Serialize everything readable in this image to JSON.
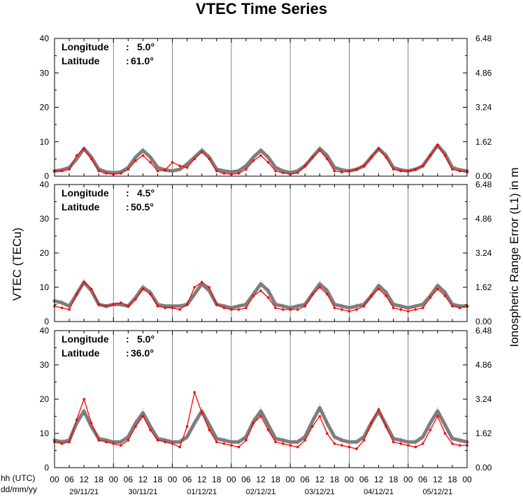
{
  "chart_data": {
    "type": "line",
    "title": "VTEC Time Series",
    "ylabel_left": "VTEC (TECu)",
    "ylabel_right": "Ionospheric Range Error (L1) in m",
    "x_row_label_1": "hh (UTC)",
    "x_row_label_2": "dd/mm/yy",
    "hour_labels": [
      "00",
      "06",
      "12",
      "18",
      "00",
      "06",
      "12",
      "18",
      "00",
      "06",
      "12",
      "18",
      "00",
      "06",
      "12",
      "18",
      "00",
      "06",
      "12",
      "18",
      "00",
      "06",
      "12",
      "18",
      "00",
      "06",
      "12",
      "18",
      "00"
    ],
    "day_labels": [
      "29/11/21",
      "30/11/21",
      "01/12/21",
      "02/12/21",
      "03/12/21",
      "04/12/21",
      "05/12/21"
    ],
    "ylim": [
      0,
      40
    ],
    "left_ticks": [
      "0",
      "10",
      "20",
      "30",
      "40"
    ],
    "right_ticks": [
      "0.00",
      "1.62",
      "3.24",
      "4.86",
      "6.48"
    ],
    "x_hours_range": [
      0,
      168
    ],
    "panels": [
      {
        "longitude_label": "Longitude",
        "longitude": "5.0°",
        "latitude_label": "Latitude",
        "latitude": "61.0°",
        "sep": ":",
        "series": [
          {
            "role": "reference",
            "color": "#707070",
            "hours": [
              0,
              3,
              6,
              9,
              12,
              15,
              18,
              21,
              24,
              27,
              30,
              33,
              36,
              39,
              42,
              45,
              48,
              51,
              54,
              57,
              60,
              63,
              66,
              69,
              72,
              75,
              78,
              81,
              84,
              87,
              90,
              93,
              96,
              99,
              102,
              105,
              108,
              111,
              114,
              117,
              120,
              123,
              126,
              129,
              132,
              135,
              138,
              141,
              144,
              147,
              150,
              153,
              156,
              159,
              162,
              165,
              168
            ],
            "values": [
              1.5,
              1.8,
              2.5,
              5,
              8,
              5.5,
              2,
              1.2,
              1,
              1.2,
              2.5,
              5.5,
              7.5,
              5.5,
              2.5,
              1.8,
              1.5,
              2,
              3.5,
              5.5,
              7.5,
              5.5,
              2,
              1.5,
              1.2,
              1.5,
              3,
              5.5,
              7.5,
              5.5,
              2.5,
              1.5,
              1,
              1.5,
              3,
              5.5,
              8,
              6,
              2.5,
              1.8,
              1.5,
              2,
              3,
              5.5,
              8,
              6,
              2.5,
              1.8,
              1.5,
              2,
              3,
              6,
              9,
              6.5,
              2.5,
              1.8,
              1.5
            ]
          },
          {
            "role": "measured",
            "color": "#ff0000",
            "hours": [
              0,
              3,
              6,
              9,
              12,
              15,
              18,
              21,
              24,
              27,
              30,
              33,
              36,
              39,
              42,
              45,
              48,
              51,
              54,
              57,
              60,
              63,
              66,
              69,
              72,
              75,
              78,
              81,
              84,
              87,
              90,
              93,
              96,
              99,
              102,
              105,
              108,
              111,
              114,
              117,
              120,
              123,
              126,
              129,
              132,
              135,
              138,
              141,
              144,
              147,
              150,
              153,
              156,
              159,
              162,
              165,
              168
            ],
            "values": [
              1.5,
              1.5,
              2,
              6,
              8,
              5,
              1.5,
              0.8,
              0.5,
              0.8,
              2,
              4.5,
              6,
              4,
              1.5,
              1.8,
              4,
              3,
              2.5,
              5,
              7,
              5,
              1.5,
              0.8,
              0.5,
              0.8,
              2,
              4.5,
              6,
              4,
              1.5,
              1,
              0.5,
              1,
              3,
              5.5,
              7.5,
              5,
              1.5,
              1.2,
              1.5,
              2,
              3,
              5.5,
              8,
              5.5,
              2,
              1.5,
              1.5,
              2,
              3,
              6,
              9,
              6,
              2,
              1.5,
              1.2
            ]
          }
        ]
      },
      {
        "longitude_label": "Longitude",
        "longitude": "4.5°",
        "latitude_label": "Latitude",
        "latitude": "50.5°",
        "sep": ":",
        "series": [
          {
            "role": "reference",
            "color": "#707070",
            "hours": [
              0,
              3,
              6,
              9,
              12,
              15,
              18,
              21,
              24,
              27,
              30,
              33,
              36,
              39,
              42,
              45,
              48,
              51,
              54,
              57,
              60,
              63,
              66,
              69,
              72,
              75,
              78,
              81,
              84,
              87,
              90,
              93,
              96,
              99,
              102,
              105,
              108,
              111,
              114,
              117,
              120,
              123,
              126,
              129,
              132,
              135,
              138,
              141,
              144,
              147,
              150,
              153,
              156,
              159,
              162,
              165,
              168
            ],
            "values": [
              6,
              5.5,
              4.5,
              8,
              11.5,
              9,
              5,
              4.5,
              5,
              5,
              4.5,
              7,
              10,
              8.5,
              5,
              4.5,
              4.5,
              4.5,
              5,
              8,
              11,
              9,
              5,
              4.5,
              4,
              4.5,
              5,
              8,
              11,
              9,
              5,
              4.5,
              4,
              4.5,
              5,
              8,
              11,
              9,
              5,
              4.5,
              4,
              4.5,
              5,
              7.5,
              10.5,
              8.5,
              5,
              4.5,
              4,
              4.5,
              5,
              7.5,
              10.5,
              8.5,
              5,
              4.5,
              4.5
            ]
          },
          {
            "role": "measured",
            "color": "#ff0000",
            "hours": [
              0,
              3,
              6,
              9,
              12,
              15,
              18,
              21,
              24,
              27,
              30,
              33,
              36,
              39,
              42,
              45,
              48,
              51,
              54,
              57,
              60,
              63,
              66,
              69,
              72,
              75,
              78,
              81,
              84,
              87,
              90,
              93,
              96,
              99,
              102,
              105,
              108,
              111,
              114,
              117,
              120,
              123,
              126,
              129,
              132,
              135,
              138,
              141,
              144,
              147,
              150,
              153,
              156,
              159,
              162,
              165,
              168
            ],
            "values": [
              4.5,
              4,
              3.5,
              8,
              11.5,
              9.5,
              5,
              4.5,
              5,
              5.5,
              4.5,
              6.5,
              9.5,
              8,
              4.5,
              4,
              4,
              3.5,
              5,
              10,
              11.5,
              10,
              5,
              4,
              3.5,
              3.5,
              4,
              7.5,
              9,
              7,
              4,
              3.5,
              3.5,
              3.5,
              4.5,
              8,
              10,
              8,
              4,
              3.5,
              3,
              3.5,
              4.5,
              7.5,
              9.5,
              7.5,
              4,
              3.5,
              3,
              3.5,
              4,
              7,
              9.5,
              7.5,
              4.5,
              4,
              4.5
            ]
          }
        ]
      },
      {
        "longitude_label": "Longitude",
        "longitude": "5.0°",
        "latitude_label": "Latitude",
        "latitude": "36.0°",
        "sep": ":",
        "series": [
          {
            "role": "reference",
            "color": "#707070",
            "hours": [
              0,
              3,
              6,
              9,
              12,
              15,
              18,
              21,
              24,
              27,
              30,
              33,
              36,
              39,
              42,
              45,
              48,
              51,
              54,
              57,
              60,
              63,
              66,
              69,
              72,
              75,
              78,
              81,
              84,
              87,
              90,
              93,
              96,
              99,
              102,
              105,
              108,
              111,
              114,
              117,
              120,
              123,
              126,
              129,
              132,
              135,
              138,
              141,
              144,
              147,
              150,
              153,
              156,
              159,
              162,
              165,
              168
            ],
            "values": [
              8,
              7.5,
              8,
              13,
              16.5,
              12,
              8.5,
              8,
              7.5,
              7.5,
              9,
              13,
              16,
              12,
              8.5,
              8,
              7.5,
              7.5,
              9,
              13,
              16.5,
              12.5,
              8.5,
              8,
              7.5,
              7.5,
              9,
              13.5,
              16.5,
              12.5,
              8.5,
              8,
              7.5,
              7.5,
              9,
              13.5,
              17.5,
              13,
              9,
              8,
              7.5,
              7.5,
              9,
              13,
              16.5,
              12.5,
              8.5,
              8,
              7.5,
              7.5,
              9,
              13,
              16.5,
              12.5,
              8.5,
              8,
              7.5
            ]
          },
          {
            "role": "measured",
            "color": "#ff0000",
            "hours": [
              0,
              3,
              6,
              9,
              12,
              15,
              18,
              21,
              24,
              27,
              30,
              33,
              36,
              39,
              42,
              45,
              48,
              51,
              54,
              57,
              60,
              63,
              66,
              69,
              72,
              75,
              78,
              81,
              84,
              87,
              90,
              93,
              96,
              99,
              102,
              105,
              108,
              111,
              114,
              117,
              120,
              123,
              126,
              129,
              132,
              135,
              138,
              141,
              144,
              147,
              150,
              153,
              156,
              159,
              162,
              165,
              168
            ],
            "values": [
              7.5,
              7,
              7.5,
              14,
              20,
              13,
              8,
              7.5,
              7,
              6.5,
              8,
              12,
              15,
              11,
              8,
              7.5,
              7,
              6,
              12,
              22,
              16,
              11,
              7.5,
              7,
              6.5,
              6,
              8,
              13,
              15,
              11,
              7.5,
              7,
              6.5,
              6,
              8,
              12,
              15,
              10,
              7,
              6.5,
              6,
              5.5,
              8,
              13,
              17,
              12,
              7.5,
              7,
              6.5,
              6,
              7,
              11,
              15,
              10,
              7,
              6.5,
              6.5
            ]
          }
        ]
      }
    ]
  }
}
